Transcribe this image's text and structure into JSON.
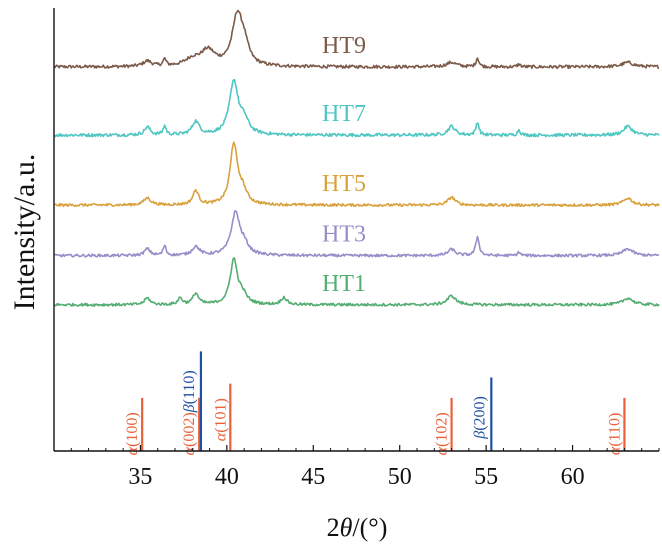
{
  "chart_data": {
    "type": "line",
    "title": "",
    "xlabel": "2θ/(°)",
    "ylabel": "Intensity/a.u.",
    "xlim": [
      30,
      65
    ],
    "x_ticks": [
      35,
      40,
      45,
      50,
      55,
      60
    ],
    "x_tick_labels": [
      "35",
      "40",
      "45",
      "50",
      "55",
      "60"
    ],
    "y_ticks": [],
    "grid": false,
    "legend": "labels placed above each curve",
    "series": [
      {
        "name": "HT9",
        "color": "#7b5a4a",
        "baseline": 0.867,
        "noise": 0.0035,
        "peaks": [
          [
            35.4,
            0.012,
            0.3
          ],
          [
            36.4,
            0.015,
            0.1
          ],
          [
            38.0,
            0.015,
            0.5
          ],
          [
            38.9,
            0.035,
            0.5
          ],
          [
            40.6,
            0.11,
            0.35
          ],
          [
            41.0,
            0.04,
            0.3
          ],
          [
            53.0,
            0.01,
            0.35
          ],
          [
            54.5,
            0.02,
            0.1
          ],
          [
            56.9,
            0.006,
            0.1
          ],
          [
            63.2,
            0.01,
            0.4
          ]
        ]
      },
      {
        "name": "HT7",
        "color": "#4fc6c1",
        "baseline": 0.713,
        "noise": 0.0035,
        "peaks": [
          [
            35.4,
            0.018,
            0.2
          ],
          [
            36.4,
            0.02,
            0.1
          ],
          [
            38.2,
            0.03,
            0.25
          ],
          [
            40.4,
            0.12,
            0.3
          ],
          [
            41.0,
            0.03,
            0.3
          ],
          [
            53.0,
            0.02,
            0.25
          ],
          [
            54.5,
            0.03,
            0.1
          ],
          [
            56.9,
            0.012,
            0.1
          ],
          [
            63.2,
            0.02,
            0.3
          ]
        ]
      },
      {
        "name": "HT5",
        "color": "#d9a13d",
        "baseline": 0.555,
        "noise": 0.003,
        "peaks": [
          [
            35.4,
            0.016,
            0.25
          ],
          [
            38.2,
            0.032,
            0.2
          ],
          [
            40.4,
            0.135,
            0.25
          ],
          [
            40.9,
            0.03,
            0.3
          ],
          [
            53.0,
            0.018,
            0.25
          ],
          [
            63.2,
            0.016,
            0.3
          ]
        ]
      },
      {
        "name": "HT3",
        "color": "#9a8cc8",
        "baseline": 0.441,
        "noise": 0.003,
        "peaks": [
          [
            35.4,
            0.015,
            0.2
          ],
          [
            36.4,
            0.022,
            0.1
          ],
          [
            38.2,
            0.02,
            0.25
          ],
          [
            40.5,
            0.095,
            0.3
          ],
          [
            41.0,
            0.02,
            0.3
          ],
          [
            53.0,
            0.014,
            0.25
          ],
          [
            54.5,
            0.042,
            0.12
          ],
          [
            56.9,
            0.008,
            0.1
          ],
          [
            63.2,
            0.015,
            0.35
          ]
        ]
      },
      {
        "name": "HT1",
        "color": "#55ad72",
        "baseline": 0.33,
        "noise": 0.003,
        "peaks": [
          [
            35.4,
            0.015,
            0.2
          ],
          [
            37.3,
            0.015,
            0.15
          ],
          [
            38.2,
            0.025,
            0.2
          ],
          [
            40.4,
            0.1,
            0.25
          ],
          [
            40.9,
            0.02,
            0.3
          ],
          [
            43.3,
            0.016,
            0.2
          ],
          [
            53.0,
            0.02,
            0.3
          ],
          [
            63.2,
            0.015,
            0.35
          ]
        ]
      }
    ],
    "reference_lines": [
      {
        "label": "α(100)",
        "x": 35.1,
        "height": 0.12,
        "color": "#e8613a"
      },
      {
        "label": "α(002)",
        "x": 38.4,
        "height": 0.12,
        "color": "#e8613a"
      },
      {
        "label": "β(110)",
        "x": 38.5,
        "height": 0.225,
        "color": "#1f4fa3"
      },
      {
        "label": "α(101)",
        "x": 40.2,
        "height": 0.152,
        "color": "#e8613a"
      },
      {
        "label": "α(102)",
        "x": 53.0,
        "height": 0.12,
        "color": "#e8613a"
      },
      {
        "label": "β(200)",
        "x": 55.3,
        "height": 0.166,
        "color": "#1f4fa3"
      },
      {
        "label": "α(110)",
        "x": 63.0,
        "height": 0.12,
        "color": "#e8613a"
      }
    ]
  }
}
